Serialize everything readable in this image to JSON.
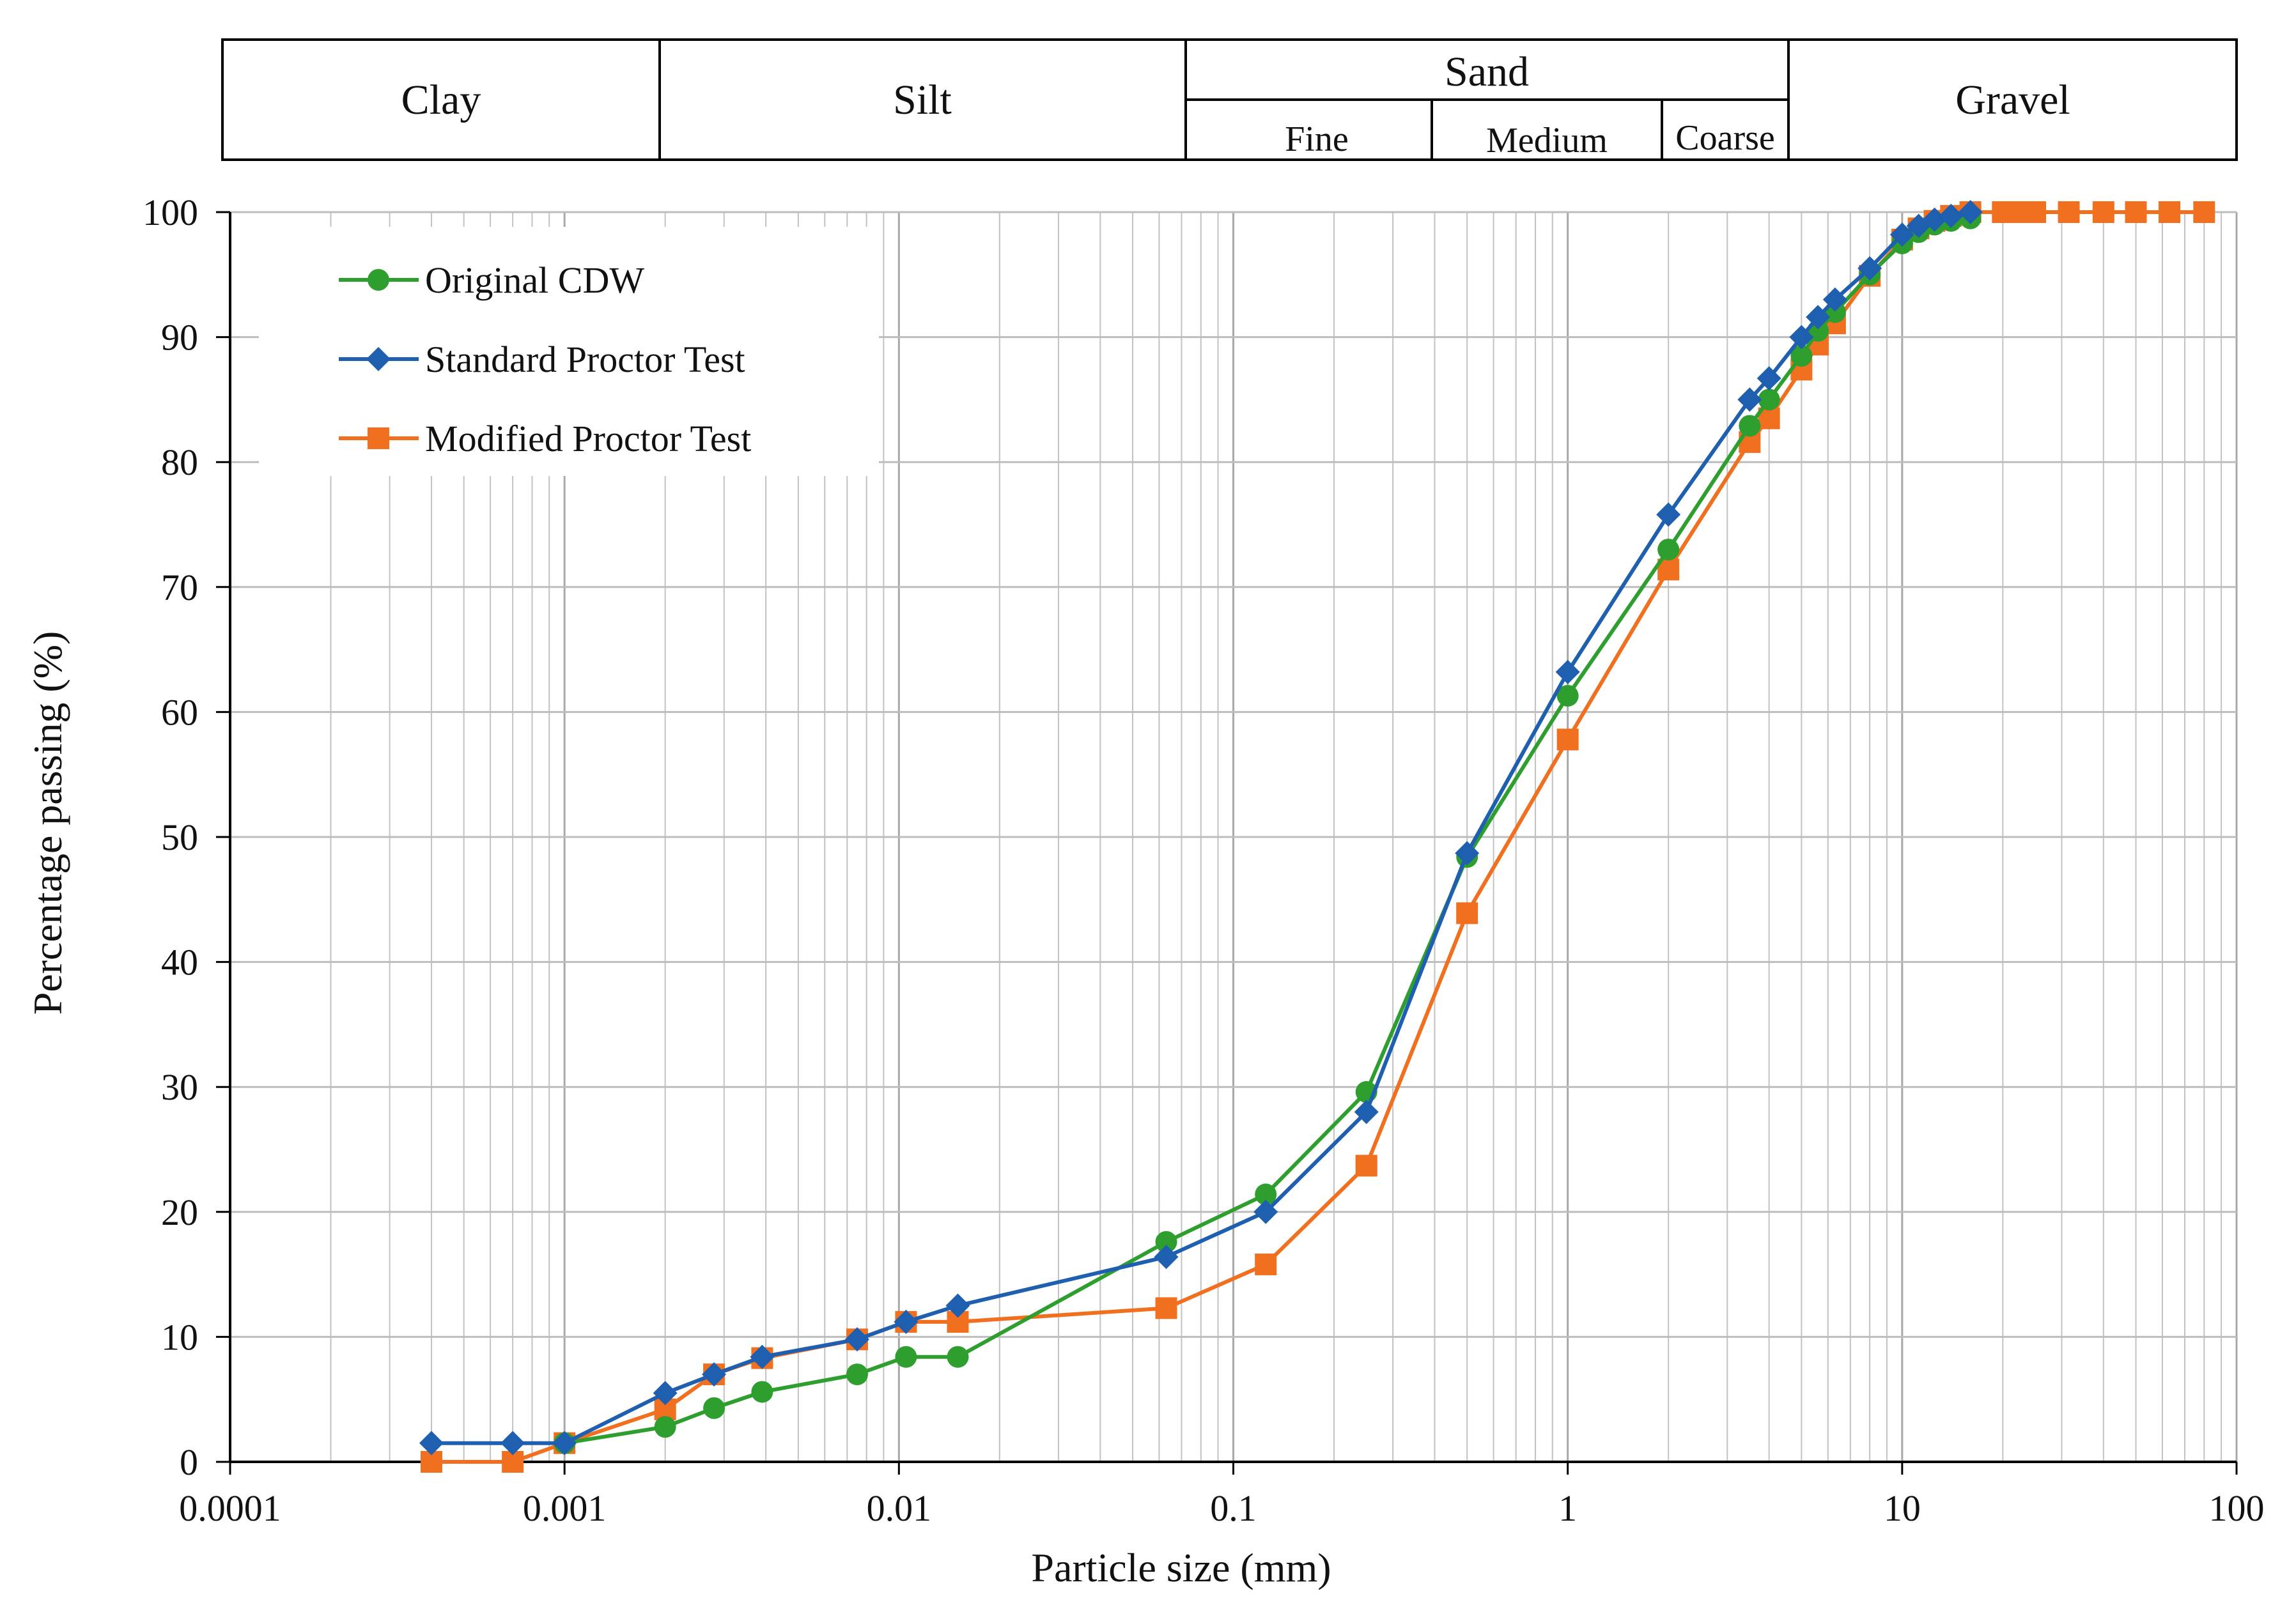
{
  "soil_classes": {
    "clay": "Clay",
    "silt": "Silt",
    "sand": "Sand",
    "sand_fine": "Fine",
    "sand_medium": "Medium",
    "sand_coarse": "Coarse",
    "gravel": "Gravel"
  },
  "chart_data": {
    "type": "line",
    "title": "",
    "xlabel": "Particle size (mm)",
    "ylabel": "Percentage passing (%)",
    "xscale": "log",
    "xlim": [
      0.0001,
      100
    ],
    "ylim": [
      0,
      100
    ],
    "grid": true,
    "legend_position": "top-left",
    "x_tick_labels": [
      "0.0001",
      "0.001",
      "0.01",
      "0.1",
      "1",
      "10",
      "100"
    ],
    "y_tick_labels": [
      "0",
      "10",
      "20",
      "30",
      "40",
      "50",
      "60",
      "70",
      "80",
      "90",
      "100"
    ],
    "series": [
      {
        "name": "Original CDW",
        "color": "#2e9e2e",
        "marker": "circle",
        "x": [
          0.001,
          0.002,
          0.0028,
          0.0039,
          0.0075,
          0.0105,
          0.015,
          0.063,
          0.125,
          0.25,
          0.5,
          1,
          2,
          3.5,
          4,
          5,
          5.6,
          6.3,
          8,
          10,
          11.2,
          12.5,
          14,
          16
        ],
        "y": [
          1.5,
          2.8,
          4.3,
          5.6,
          7.0,
          8.4,
          8.4,
          17.6,
          21.4,
          29.6,
          48.4,
          61.3,
          73.0,
          82.9,
          85.0,
          88.5,
          90.5,
          92.0,
          95.0,
          97.5,
          98.4,
          99.0,
          99.3,
          99.5
        ]
      },
      {
        "name": "Standard Proctor Test",
        "color": "#1f5fb0",
        "marker": "diamond",
        "x": [
          0.0004,
          0.0007,
          0.001,
          0.002,
          0.0028,
          0.0039,
          0.0075,
          0.0105,
          0.015,
          0.063,
          0.125,
          0.25,
          0.5,
          1,
          2,
          3.5,
          4,
          5,
          5.6,
          6.3,
          8,
          10,
          11.2,
          12.5,
          14,
          16
        ],
        "y": [
          1.5,
          1.5,
          1.5,
          5.5,
          7.0,
          8.4,
          9.8,
          11.2,
          12.5,
          16.4,
          20.0,
          28.0,
          48.7,
          63.2,
          75.8,
          85.0,
          86.7,
          90.0,
          91.6,
          93.0,
          95.5,
          98.2,
          98.9,
          99.4,
          99.7,
          100
        ]
      },
      {
        "name": "Modified Proctor Test",
        "color": "#f07020",
        "marker": "square",
        "x": [
          0.0004,
          0.0007,
          0.001,
          0.002,
          0.0028,
          0.0039,
          0.0075,
          0.0105,
          0.015,
          0.063,
          0.125,
          0.25,
          0.5,
          1,
          2,
          3.5,
          4,
          5,
          5.6,
          6.3,
          8,
          10,
          11.2,
          12.5,
          14,
          16,
          20,
          22.4,
          25,
          31.5,
          40,
          50,
          63,
          80
        ],
        "y": [
          0,
          0,
          1.5,
          4.2,
          7.0,
          8.3,
          9.8,
          11.2,
          11.2,
          12.3,
          15.8,
          23.7,
          43.9,
          57.8,
          71.4,
          81.6,
          83.5,
          87.4,
          89.4,
          91.1,
          94.9,
          97.8,
          98.7,
          99.3,
          99.7,
          100,
          100,
          100,
          100,
          100,
          100,
          100,
          100,
          100
        ]
      }
    ]
  }
}
